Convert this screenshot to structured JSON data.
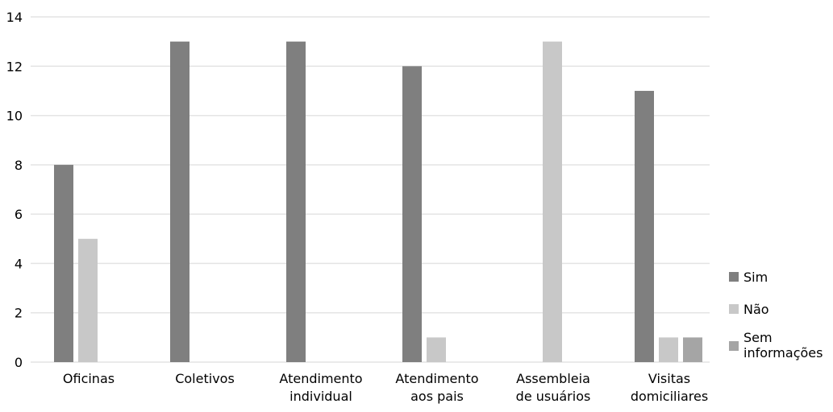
{
  "chart_data": {
    "type": "bar",
    "categories": [
      [
        "Oficinas"
      ],
      [
        "Coletivos"
      ],
      [
        "Atendimento",
        "individual"
      ],
      [
        "Atendimento",
        "aos pais"
      ],
      [
        "Assembleia",
        "de usuários"
      ],
      [
        "Visitas",
        "domiciliares"
      ]
    ],
    "series": [
      {
        "name": "Sim",
        "color": "#7f7f7f",
        "values": [
          8,
          13,
          13,
          12,
          0,
          11
        ]
      },
      {
        "name": "Não",
        "color": "#c8c8c8",
        "values": [
          5,
          0,
          0,
          1,
          13,
          1
        ]
      },
      {
        "name": [
          "Sem",
          "informações"
        ],
        "color": "#a5a5a5",
        "values": [
          0,
          0,
          0,
          0,
          0,
          1
        ]
      }
    ],
    "ylim": [
      0,
      14
    ],
    "yticks": [
      0,
      2,
      4,
      6,
      8,
      10,
      12,
      14
    ],
    "grid": true,
    "legend_position": "right"
  }
}
